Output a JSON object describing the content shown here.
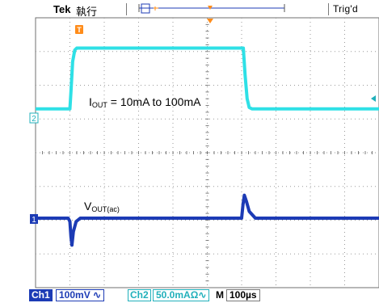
{
  "header": {
    "brand": "Tek",
    "run_state": "執行",
    "trigger_status": "Trig'd",
    "trigger_marker": "T"
  },
  "status_bar": {
    "ch1_label": "Ch1",
    "ch1_scale": "100mV ∿",
    "ch2_label": "Ch2",
    "ch2_scale": "50.0mAΩ∿",
    "timebase_label": "M",
    "timebase": "100µs"
  },
  "colors": {
    "ch1": "#1c3bb5",
    "ch2": "#2ee0e6",
    "ch2_marker": "#20b0bb",
    "trigger": "#ff8c1a",
    "grid": "#9a9a9a"
  },
  "chart_data": {
    "type": "line",
    "x_unit": "µs",
    "x_per_division": 100,
    "divisions_x": 10,
    "divisions_y": 8,
    "grid": true,
    "xlim": [
      0,
      1000
    ],
    "series": [
      {
        "label_prefix": "I",
        "label_sub": "OUT",
        "label_rest": " = 10mA to 100mA",
        "channel_marker": "2",
        "channel": "Ch2",
        "unit": "mA",
        "per_division": 50,
        "x": [
          0,
          100,
          103,
          108,
          114,
          120,
          300,
          450,
          605,
          610,
          616,
          622,
          630,
          1000
        ],
        "y": [
          10,
          10,
          35,
          80,
          97,
          100,
          100,
          100,
          100,
          60,
          25,
          12,
          10,
          10
        ]
      },
      {
        "label_prefix": "V",
        "label_sub": "OUT(ac)",
        "label_rest": "",
        "channel_marker": "1",
        "channel": "Ch1",
        "unit": "mV",
        "per_division": 100,
        "x": [
          0,
          95,
          100,
          103,
          106,
          110,
          118,
          130,
          300,
          500,
          600,
          604,
          608,
          614,
          622,
          640,
          1000
        ],
        "y": [
          0,
          0,
          -10,
          -55,
          -80,
          -40,
          -10,
          0,
          0,
          0,
          0,
          40,
          68,
          50,
          20,
          0,
          0
        ]
      }
    ]
  }
}
